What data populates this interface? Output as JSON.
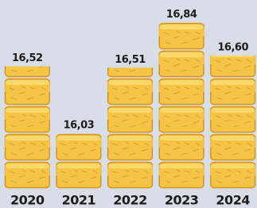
{
  "chart_data": {
    "type": "bar",
    "categories": [
      "2020",
      "2021",
      "2022",
      "2023",
      "2024"
    ],
    "values": [
      16.52,
      16.03,
      16.51,
      16.84,
      16.6
    ],
    "value_labels": [
      "16,52",
      "16,03",
      "16,51",
      "16,84",
      "16,60"
    ],
    "color": "#f6c445",
    "ylim": [
      15.625,
      16.9
    ]
  }
}
